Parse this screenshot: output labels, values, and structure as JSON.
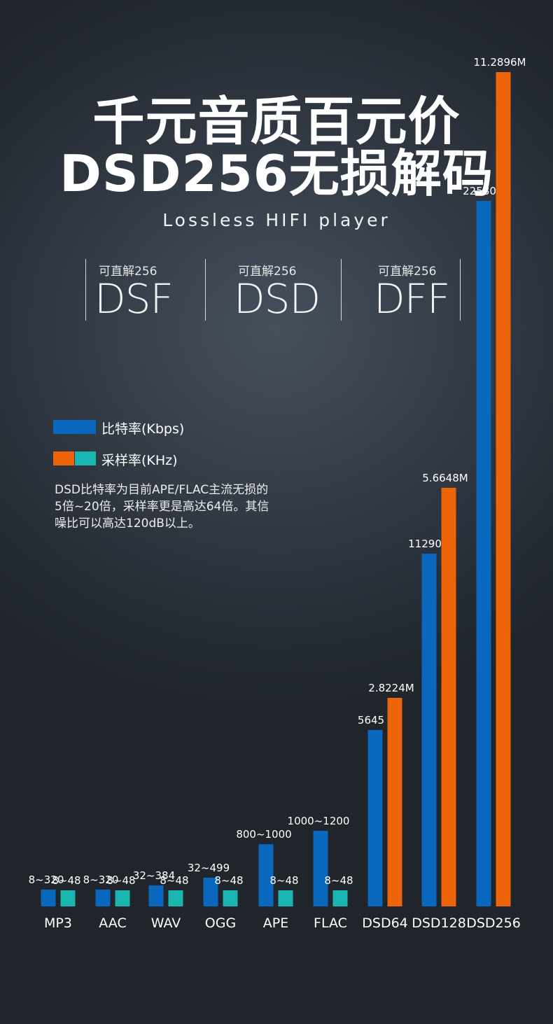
{
  "header": {
    "title_line1": "千元音质百元价",
    "title_line2": "DSD256无损解码",
    "subtitle": "Lossless HIFI player"
  },
  "formats": [
    {
      "caption": "可直解256",
      "name": "DSF"
    },
    {
      "caption": "可直解256",
      "name": "DSD"
    },
    {
      "caption": "可直解256",
      "name": "DFF"
    }
  ],
  "legend": {
    "bitrate_label": "比特率(Kbps)",
    "samplerate_label": "采样率(KHz)"
  },
  "description": "DSD比特率为目前APE/FLAC主流无损的\n5倍~20倍，采样率更是高达64倍。其信\n噪比可以高达120dB以上。",
  "colors": {
    "bitrate_blue": "#0967be",
    "samplerate_orange": "#ee6408",
    "samplerate_teal": "#1ab5b0"
  },
  "chart_data": {
    "type": "bar",
    "categories": [
      "MP3",
      "AAC",
      "WAV",
      "OGG",
      "APE",
      "FLAC",
      "DSD64",
      "DSD128",
      "DSD256"
    ],
    "series": [
      {
        "name": "比特率(Kbps)",
        "values": [
          320,
          320,
          384,
          499,
          1000,
          1200,
          5645,
          11290,
          22580
        ],
        "labels": [
          "8~320",
          "8~320",
          "32~384",
          "32~499",
          "800~1000",
          "1000~1200",
          "5645",
          "11290",
          "22580"
        ]
      },
      {
        "name": "采样率(KHz)",
        "values": [
          48,
          48,
          48,
          48,
          48,
          48,
          2822.4,
          5664.8,
          11289.6
        ],
        "labels": [
          "8~48",
          "8~48",
          "8~48",
          "8~48",
          "8~48",
          "8~48",
          "2.8224M",
          "5.6648M",
          "11.2896M"
        ]
      }
    ]
  }
}
